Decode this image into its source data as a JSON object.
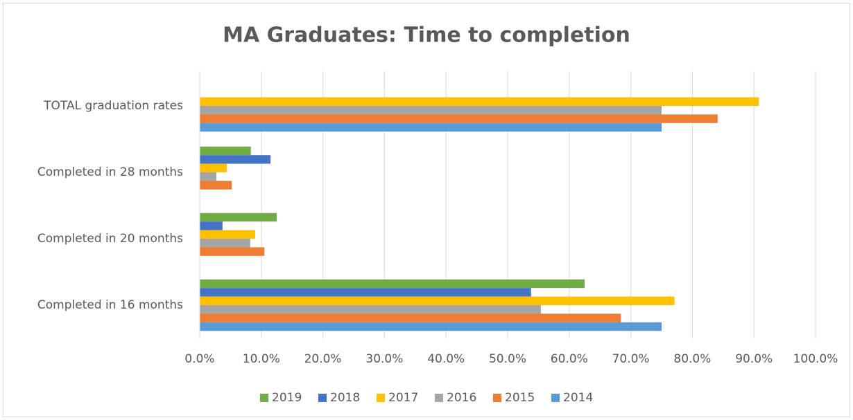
{
  "chart_data": {
    "type": "hbar",
    "title": "MA Graduates: Time to completion",
    "categories": [
      "Completed in 16 months",
      "Completed in 20 months",
      "Completed in 28 months",
      "TOTAL graduation rates"
    ],
    "series": [
      {
        "name": "2019",
        "color": "#70ad47",
        "values": [
          62.5,
          12.5,
          8.3,
          null
        ]
      },
      {
        "name": "2018",
        "color": "#4472c4",
        "values": [
          53.8,
          3.7,
          11.5,
          null
        ]
      },
      {
        "name": "2017",
        "color": "#ffc000",
        "values": [
          77.1,
          9.0,
          4.4,
          90.8
        ]
      },
      {
        "name": "2016",
        "color": "#a5a5a5",
        "values": [
          55.4,
          8.2,
          2.7,
          75.0
        ]
      },
      {
        "name": "2015",
        "color": "#ed7d31",
        "values": [
          68.4,
          10.5,
          5.2,
          84.1
        ]
      },
      {
        "name": "2014",
        "color": "#5b9bd5",
        "values": [
          75.0,
          null,
          null,
          75.0
        ]
      }
    ],
    "xlim": [
      0,
      100
    ],
    "xticks": [
      {
        "value": 0,
        "label": "0.0%"
      },
      {
        "value": 10,
        "label": "10.0%"
      },
      {
        "value": 20,
        "label": "20.0%"
      },
      {
        "value": 30,
        "label": "30.0%"
      },
      {
        "value": 40,
        "label": "40.0%"
      },
      {
        "value": 50,
        "label": "50.0%"
      },
      {
        "value": 60,
        "label": "60.0%"
      },
      {
        "value": 70,
        "label": "70.0%"
      },
      {
        "value": 80,
        "label": "80.0%"
      },
      {
        "value": 90,
        "label": "90.0%"
      },
      {
        "value": 100,
        "label": "100.0%"
      }
    ],
    "grid": true,
    "legend": "bottom"
  }
}
